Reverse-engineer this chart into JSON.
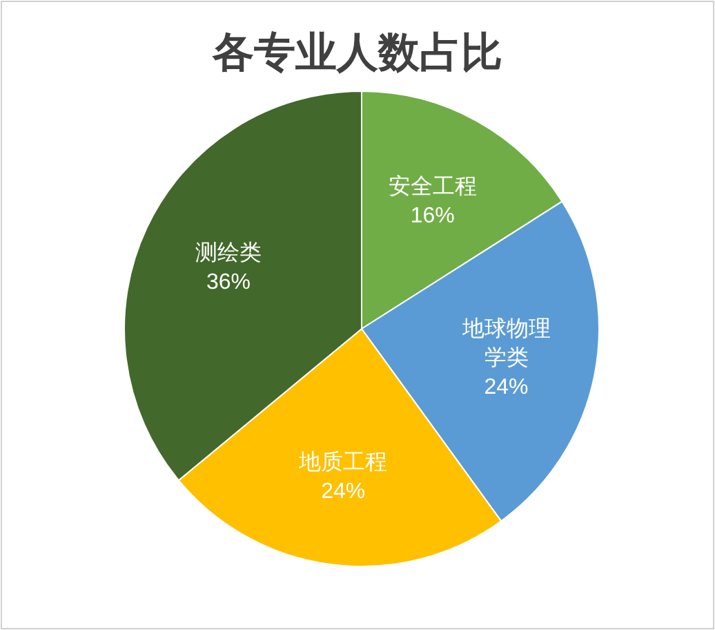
{
  "chart_data": {
    "type": "pie",
    "title": "各专业人数占比",
    "categories": [
      "安全工程",
      "地球物理学类",
      "地质工程",
      "测绘类"
    ],
    "values": [
      16,
      24,
      24,
      36
    ],
    "value_labels": [
      "16%",
      "24%",
      "24%",
      "36%"
    ],
    "colors": [
      "#70ad47",
      "#5b9bd5",
      "#ffc000",
      "#43682b"
    ],
    "legend": false
  }
}
